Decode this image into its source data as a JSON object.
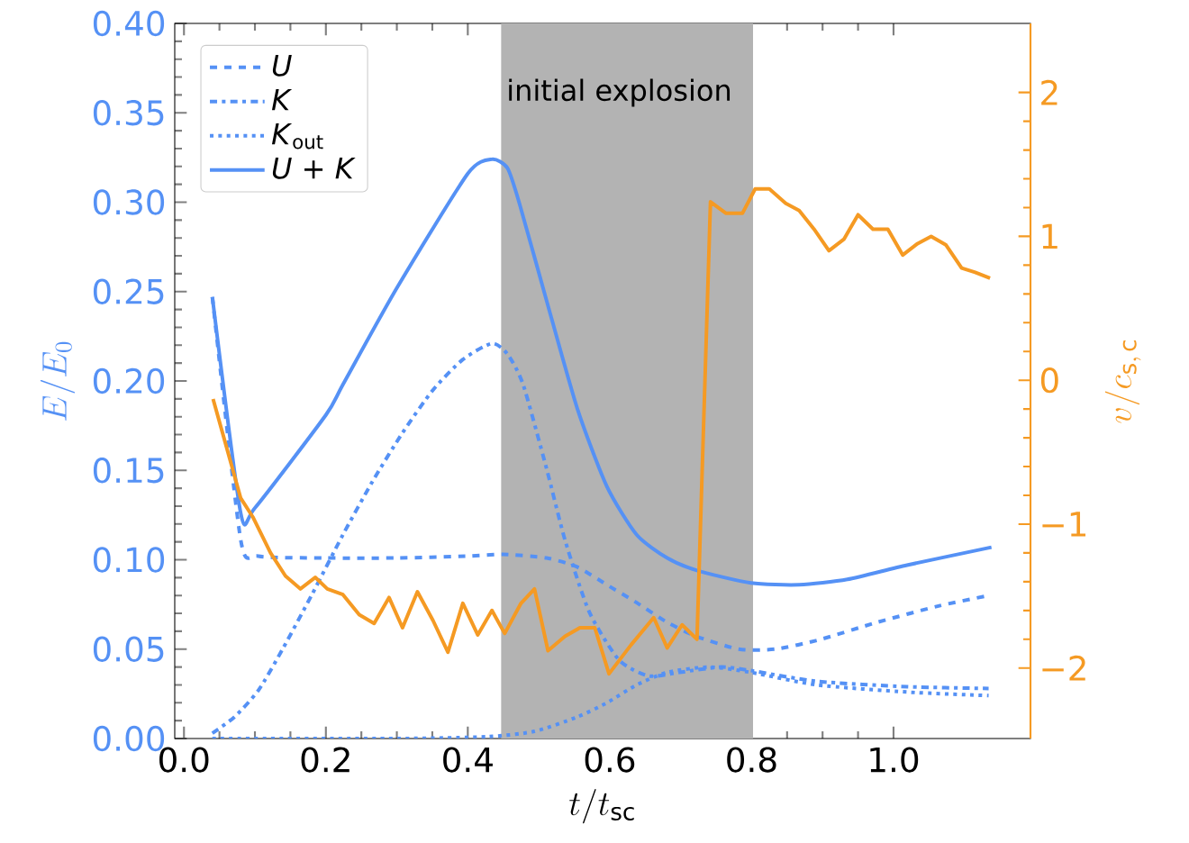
{
  "chart_data": {
    "type": "line",
    "xlabel": "t/t_{\\mathrm{sc}}",
    "ylabel": "E/E_{0}",
    "y2label": "v/c_{\\mathrm{s,\\,c}}",
    "xlim": [
      -0.013,
      1.193
    ],
    "ylim": [
      0,
      0.4
    ],
    "y2lim": [
      -2.49,
      2.48
    ],
    "xticks": [
      {
        "value": 0,
        "label": "0.0"
      },
      {
        "value": 0.2,
        "label": "0.2"
      },
      {
        "value": 0.4,
        "label": "0.4"
      },
      {
        "value": 0.6,
        "label": "0.6"
      },
      {
        "value": 0.8,
        "label": "0.8"
      },
      {
        "value": 1,
        "label": "1.0"
      }
    ],
    "yticks": [
      {
        "value": 0,
        "label": "0.00"
      },
      {
        "value": 0.05,
        "label": "0.05"
      },
      {
        "value": 0.1,
        "label": "0.10"
      },
      {
        "value": 0.15,
        "label": "0.15"
      },
      {
        "value": 0.2,
        "label": "0.20"
      },
      {
        "value": 0.25,
        "label": "0.25"
      },
      {
        "value": 0.3,
        "label": "0.30"
      },
      {
        "value": 0.35,
        "label": "0.35"
      },
      {
        "value": 0.4,
        "label": "0.40"
      }
    ],
    "y2ticks": [
      {
        "value": -2,
        "label": "−2"
      },
      {
        "value": -1,
        "label": "−1"
      },
      0,
      1,
      2
    ],
    "legend": "top left",
    "bands": [
      {
        "axis": "x",
        "from": 0.447,
        "to": 0.802,
        "label": "initial explosion",
        "color": "#b3b3b3"
      }
    ],
    "series": [
      {
        "name": "*U*",
        "color": "#5591f5",
        "line_style": "dashed",
        "x": [
          0.04,
          0.08,
          0.105,
          0.2,
          0.3,
          0.4,
          0.45,
          0.511,
          0.554,
          0.596,
          0.638,
          0.681,
          0.723,
          0.782,
          0.833,
          0.893,
          0.977,
          1.062,
          1.134
        ],
        "values": [
          0.247,
          0.111,
          0.102,
          0.101,
          0.101,
          0.102,
          0.103,
          0.101,
          0.096,
          0.086,
          0.076,
          0.065,
          0.057,
          0.05,
          0.05,
          0.055,
          0.065,
          0.074,
          0.08
        ]
      },
      {
        "name": "*K*",
        "color": "#5591f5",
        "line_style": "dashdot",
        "x": [
          0.04,
          0.071,
          0.105,
          0.139,
          0.181,
          0.224,
          0.266,
          0.308,
          0.351,
          0.393,
          0.434,
          0.456,
          0.478,
          0.511,
          0.537,
          0.571,
          0.613,
          0.655,
          0.698,
          0.757,
          0.799,
          0.892,
          1.019,
          1.134
        ],
        "values": [
          0.003,
          0.012,
          0.027,
          0.05,
          0.081,
          0.114,
          0.144,
          0.171,
          0.195,
          0.212,
          0.221,
          0.215,
          0.198,
          0.151,
          0.111,
          0.071,
          0.044,
          0.035,
          0.037,
          0.04,
          0.038,
          0.032,
          0.029,
          0.028
        ]
      },
      {
        "name": "*K*$_{out}$",
        "color": "#5591f5",
        "line_style": "dotted",
        "x": [
          0.04,
          0.3,
          0.427,
          0.494,
          0.554,
          0.596,
          0.638,
          0.681,
          0.74,
          0.799,
          0.892,
          1.019,
          1.134
        ],
        "values": [
          0.0,
          0.0,
          0.001,
          0.004,
          0.012,
          0.02,
          0.03,
          0.037,
          0.04,
          0.037,
          0.03,
          0.026,
          0.024
        ]
      },
      {
        "name": "*U* + *K*",
        "color": "#5591f5",
        "line_style": "solid",
        "x": [
          0.04,
          0.08,
          0.1,
          0.2,
          0.224,
          0.3,
          0.4,
          0.434,
          0.456,
          0.473,
          0.511,
          0.554,
          0.596,
          0.638,
          0.681,
          0.723,
          0.799,
          0.867,
          0.935,
          1.019,
          1.138
        ],
        "values": [
          0.247,
          0.126,
          0.129,
          0.181,
          0.198,
          0.252,
          0.316,
          0.324,
          0.319,
          0.299,
          0.245,
          0.185,
          0.141,
          0.114,
          0.101,
          0.094,
          0.087,
          0.086,
          0.089,
          0.097,
          0.107
        ]
      },
      {
        "color": "#f59a23",
        "axis": "y2",
        "line_style": "solid",
        "x": [
          0.041,
          0.08,
          0.097,
          0.122,
          0.143,
          0.164,
          0.185,
          0.202,
          0.224,
          0.247,
          0.268,
          0.289,
          0.308,
          0.329,
          0.351,
          0.372,
          0.393,
          0.414,
          0.434,
          0.452,
          0.475,
          0.494,
          0.513,
          0.537,
          0.558,
          0.579,
          0.599,
          0.63,
          0.662,
          0.681,
          0.702,
          0.723,
          0.742,
          0.764,
          0.787,
          0.805,
          0.825,
          0.848,
          0.867,
          0.888,
          0.909,
          0.93,
          0.95,
          0.971,
          0.992,
          1.013,
          1.034,
          1.053,
          1.074,
          1.096,
          1.115,
          1.136
        ],
        "values": [
          -0.13,
          -0.82,
          -0.95,
          -1.2,
          -1.36,
          -1.45,
          -1.37,
          -1.45,
          -1.49,
          -1.63,
          -1.69,
          -1.51,
          -1.72,
          -1.47,
          -1.67,
          -1.89,
          -1.55,
          -1.77,
          -1.6,
          -1.76,
          -1.55,
          -1.45,
          -1.88,
          -1.78,
          -1.72,
          -1.72,
          -2.04,
          -1.84,
          -1.65,
          -1.86,
          -1.7,
          -1.8,
          1.24,
          1.16,
          1.16,
          1.33,
          1.33,
          1.23,
          1.18,
          1.05,
          0.9,
          0.98,
          1.15,
          1.05,
          1.05,
          0.87,
          0.95,
          1.0,
          0.94,
          0.78,
          0.75,
          0.71
        ]
      }
    ]
  }
}
